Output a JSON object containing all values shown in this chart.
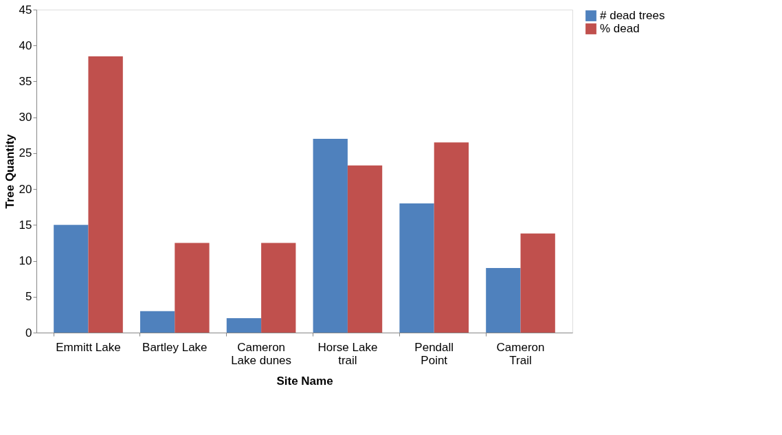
{
  "chart_data": {
    "type": "bar",
    "xlabel": "Site Name",
    "ylabel": "Tree Quantity",
    "categories": [
      "Emmitt Lake",
      "Bartley Lake",
      "Cameron Lake dunes",
      "Horse Lake trail",
      "Pendall Point",
      "Cameron Trail"
    ],
    "series": [
      {
        "name": "# dead trees",
        "color": "#4f81bd",
        "values": [
          15,
          3,
          2,
          27,
          18,
          9
        ]
      },
      {
        "name": "% dead",
        "color": "#c0504d",
        "values": [
          38.5,
          12.5,
          12.5,
          23.3,
          26.5,
          13.8
        ]
      }
    ],
    "ylim": [
      0,
      45
    ],
    "yticks": [
      0,
      5,
      10,
      15,
      20,
      25,
      30,
      35,
      40,
      45
    ],
    "grid": false,
    "legend": "right"
  }
}
